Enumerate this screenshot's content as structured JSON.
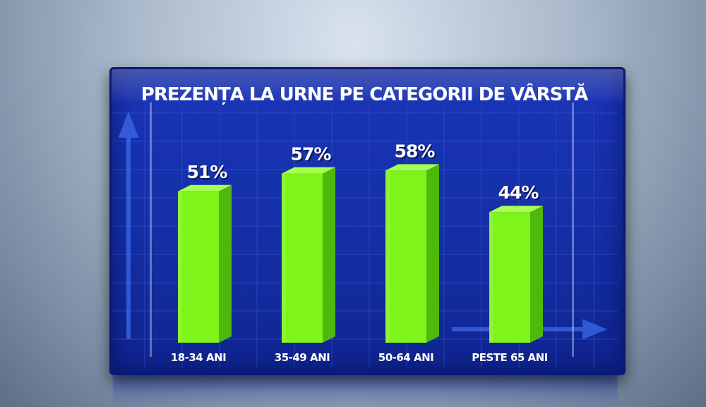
{
  "chart_data": {
    "type": "bar",
    "title": "PREZENȚA LA URNE PE CATEGORII DE VÂRSTĂ",
    "categories": [
      "18-34 ANI",
      "35-49 ANI",
      "50-64 ANI",
      "PESTE 65 ANI"
    ],
    "values": [
      51,
      57,
      58,
      44
    ],
    "value_labels": [
      "51%",
      "57%",
      "58%",
      "44%"
    ],
    "unit": "%",
    "grid": true,
    "legend": "none",
    "colors": {
      "bar_front": "#7ef41a",
      "bar_side": "#4fb80c",
      "bar_top": "#a8ff52",
      "background": "#1832b0",
      "grid": "#3a58d6"
    }
  }
}
